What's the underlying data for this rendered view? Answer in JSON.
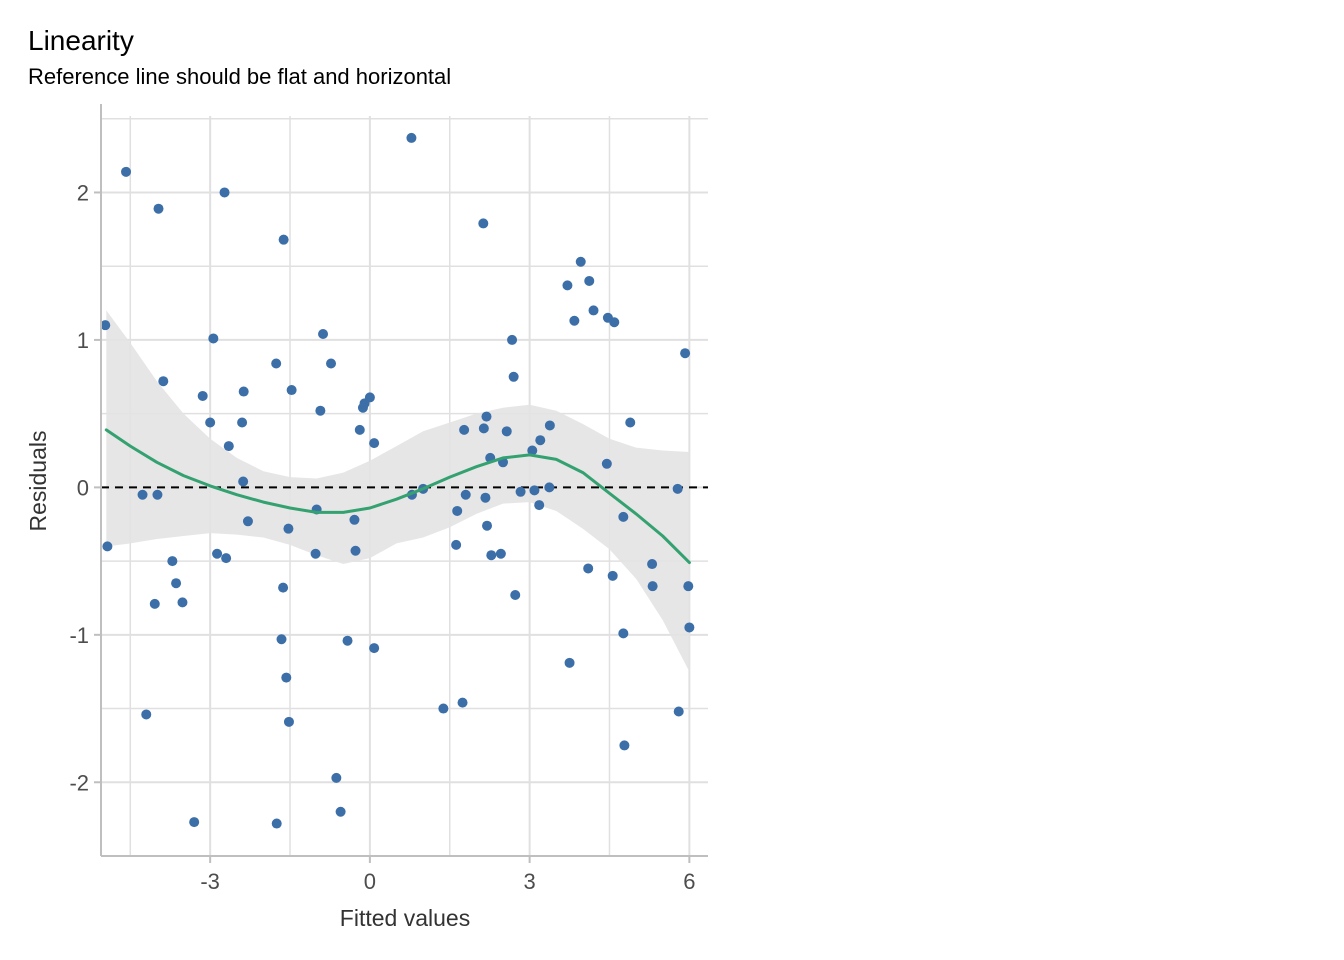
{
  "chart_data": {
    "type": "scatter",
    "title": "Linearity",
    "subtitle": "Reference line should be flat and horizontal",
    "xlabel": "Fitted values",
    "ylabel": "Residuals",
    "xlim": [
      -5.05,
      6.35
    ],
    "ylim": [
      -2.5,
      2.6
    ],
    "x_ticks": [
      -3,
      0,
      3,
      6
    ],
    "x_tick_labels": [
      "-3",
      "0",
      "3",
      "6"
    ],
    "y_ticks": [
      -2,
      -1,
      0,
      1,
      2
    ],
    "y_tick_labels": [
      "-2",
      "-1",
      "0",
      "1",
      "2"
    ],
    "grid": true,
    "reference_line": {
      "y": 0,
      "style": "dashed",
      "color": "#000000"
    },
    "colors": {
      "points": "#3c6ea8",
      "smooth": "#34a170",
      "band": "#e3e3e3",
      "grid": "#e0e0e0",
      "axis": "#bfbfbf"
    },
    "points": [
      {
        "x": -4.97,
        "y": 1.1
      },
      {
        "x": -4.93,
        "y": -0.4
      },
      {
        "x": -4.58,
        "y": 2.14
      },
      {
        "x": -4.27,
        "y": -0.05
      },
      {
        "x": -4.2,
        "y": -1.54
      },
      {
        "x": -4.04,
        "y": -0.79
      },
      {
        "x": -3.99,
        "y": -0.05
      },
      {
        "x": -3.97,
        "y": 1.89
      },
      {
        "x": -3.88,
        "y": 0.72
      },
      {
        "x": -3.71,
        "y": -0.5
      },
      {
        "x": -3.64,
        "y": -0.65
      },
      {
        "x": -3.52,
        "y": -0.78
      },
      {
        "x": -3.3,
        "y": -2.27
      },
      {
        "x": -3.14,
        "y": 0.62
      },
      {
        "x": -3.0,
        "y": 0.44
      },
      {
        "x": -2.94,
        "y": 1.01
      },
      {
        "x": -2.87,
        "y": -0.45
      },
      {
        "x": -2.73,
        "y": 2.0
      },
      {
        "x": -2.7,
        "y": -0.48
      },
      {
        "x": -2.65,
        "y": 0.28
      },
      {
        "x": -2.4,
        "y": 0.44
      },
      {
        "x": -2.38,
        "y": 0.04
      },
      {
        "x": -2.37,
        "y": 0.65
      },
      {
        "x": -2.29,
        "y": -0.23
      },
      {
        "x": -1.76,
        "y": 0.84
      },
      {
        "x": -1.75,
        "y": -2.28
      },
      {
        "x": -1.66,
        "y": -1.03
      },
      {
        "x": -1.63,
        "y": -0.68
      },
      {
        "x": -1.62,
        "y": 1.68
      },
      {
        "x": -1.57,
        "y": -1.29
      },
      {
        "x": -1.53,
        "y": -0.28
      },
      {
        "x": -1.52,
        "y": -1.59
      },
      {
        "x": -1.47,
        "y": 0.66
      },
      {
        "x": -1.02,
        "y": -0.45
      },
      {
        "x": -1.0,
        "y": -0.15
      },
      {
        "x": -0.93,
        "y": 0.52
      },
      {
        "x": -0.88,
        "y": 1.04
      },
      {
        "x": -0.73,
        "y": 0.84
      },
      {
        "x": -0.63,
        "y": -1.97
      },
      {
        "x": -0.55,
        "y": -2.2
      },
      {
        "x": -0.42,
        "y": -1.04
      },
      {
        "x": -0.29,
        "y": -0.22
      },
      {
        "x": -0.27,
        "y": -0.43
      },
      {
        "x": -0.19,
        "y": 0.39
      },
      {
        "x": -0.13,
        "y": 0.54
      },
      {
        "x": -0.1,
        "y": 0.57
      },
      {
        "x": 0.0,
        "y": 0.61
      },
      {
        "x": 0.08,
        "y": 0.3
      },
      {
        "x": 0.08,
        "y": -1.09
      },
      {
        "x": 0.78,
        "y": 2.37
      },
      {
        "x": 0.79,
        "y": -0.05
      },
      {
        "x": 1.0,
        "y": -0.01
      },
      {
        "x": 1.38,
        "y": -1.5
      },
      {
        "x": 1.62,
        "y": -0.39
      },
      {
        "x": 1.64,
        "y": -0.16
      },
      {
        "x": 1.74,
        "y": -1.46
      },
      {
        "x": 1.77,
        "y": 0.39
      },
      {
        "x": 1.8,
        "y": -0.05
      },
      {
        "x": 2.13,
        "y": 1.79
      },
      {
        "x": 2.14,
        "y": 0.4
      },
      {
        "x": 2.17,
        "y": -0.07
      },
      {
        "x": 2.19,
        "y": 0.48
      },
      {
        "x": 2.2,
        "y": -0.26
      },
      {
        "x": 2.26,
        "y": 0.2
      },
      {
        "x": 2.28,
        "y": -0.46
      },
      {
        "x": 2.46,
        "y": -0.45
      },
      {
        "x": 2.5,
        "y": 0.17
      },
      {
        "x": 2.57,
        "y": 0.38
      },
      {
        "x": 2.67,
        "y": 1.0
      },
      {
        "x": 2.7,
        "y": 0.75
      },
      {
        "x": 2.73,
        "y": -0.73
      },
      {
        "x": 2.83,
        "y": -0.03
      },
      {
        "x": 3.05,
        "y": 0.25
      },
      {
        "x": 3.09,
        "y": -0.02
      },
      {
        "x": 3.18,
        "y": -0.12
      },
      {
        "x": 3.2,
        "y": 0.32
      },
      {
        "x": 3.37,
        "y": 0.0
      },
      {
        "x": 3.38,
        "y": 0.42
      },
      {
        "x": 3.71,
        "y": 1.37
      },
      {
        "x": 3.75,
        "y": -1.19
      },
      {
        "x": 3.84,
        "y": 1.13
      },
      {
        "x": 3.96,
        "y": 1.53
      },
      {
        "x": 4.1,
        "y": -0.55
      },
      {
        "x": 4.12,
        "y": 1.4
      },
      {
        "x": 4.2,
        "y": 1.2
      },
      {
        "x": 4.45,
        "y": 0.16
      },
      {
        "x": 4.47,
        "y": 1.15
      },
      {
        "x": 4.56,
        "y": -0.6
      },
      {
        "x": 4.59,
        "y": 1.12
      },
      {
        "x": 4.76,
        "y": -0.2
      },
      {
        "x": 4.76,
        "y": -0.99
      },
      {
        "x": 4.78,
        "y": -1.75
      },
      {
        "x": 4.89,
        "y": 0.44
      },
      {
        "x": 5.3,
        "y": -0.52
      },
      {
        "x": 5.31,
        "y": -0.67
      },
      {
        "x": 5.78,
        "y": -0.01
      },
      {
        "x": 5.8,
        "y": -1.52
      },
      {
        "x": 5.92,
        "y": 0.91
      },
      {
        "x": 5.98,
        "y": -0.67
      },
      {
        "x": 6.0,
        "y": -0.95
      }
    ],
    "smooth": {
      "x": [
        -4.95,
        -4.5,
        -4.0,
        -3.5,
        -3.0,
        -2.5,
        -2.0,
        -1.5,
        -1.0,
        -0.5,
        0.0,
        0.5,
        1.0,
        1.5,
        2.0,
        2.5,
        3.0,
        3.5,
        4.0,
        4.5,
        5.0,
        5.5,
        6.0
      ],
      "y": [
        0.39,
        0.28,
        0.17,
        0.08,
        0.01,
        -0.05,
        -0.1,
        -0.14,
        -0.17,
        -0.17,
        -0.14,
        -0.08,
        -0.01,
        0.07,
        0.14,
        0.2,
        0.22,
        0.19,
        0.1,
        -0.04,
        -0.18,
        -0.33,
        -0.51
      ],
      "upper": [
        1.2,
        0.98,
        0.72,
        0.5,
        0.33,
        0.2,
        0.11,
        0.07,
        0.06,
        0.1,
        0.18,
        0.28,
        0.38,
        0.44,
        0.5,
        0.54,
        0.56,
        0.52,
        0.43,
        0.33,
        0.27,
        0.25,
        0.24
      ],
      "lower": [
        -0.4,
        -0.38,
        -0.35,
        -0.33,
        -0.31,
        -0.32,
        -0.34,
        -0.39,
        -0.46,
        -0.52,
        -0.48,
        -0.38,
        -0.34,
        -0.27,
        -0.18,
        -0.11,
        -0.1,
        -0.16,
        -0.28,
        -0.42,
        -0.62,
        -0.9,
        -1.25
      ]
    }
  }
}
